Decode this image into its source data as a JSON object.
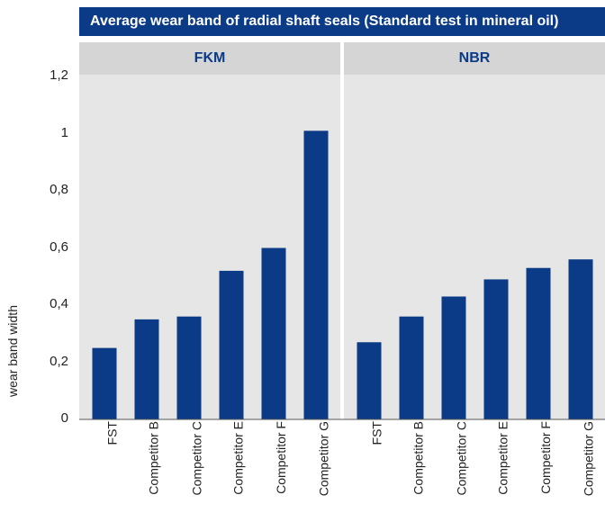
{
  "chart_data": {
    "type": "bar",
    "title": "Average wear band of radial shaft seals (Standard test in mineral oil)",
    "ylabel": "wear band width",
    "ylim": [
      0,
      1.2
    ],
    "yticks": [
      {
        "value": 0,
        "label": "0"
      },
      {
        "value": 0.2,
        "label": "0,2"
      },
      {
        "value": 0.4,
        "label": "0,4"
      },
      {
        "value": 0.6,
        "label": "0,6"
      },
      {
        "value": 0.8,
        "label": "0,8"
      },
      {
        "value": 1.0,
        "label": "1"
      },
      {
        "value": 1.2,
        "label": "1,2"
      }
    ],
    "grid": false,
    "bar_color": "#0b3b86",
    "panel_header_color": "#d5d5d5",
    "panels": [
      {
        "name": "FKM",
        "categories": [
          "FST",
          "Competitor B",
          "Competitor C",
          "Competitor E",
          "Competitor F",
          "Competitor G"
        ],
        "values": [
          0.25,
          0.35,
          0.36,
          0.52,
          0.6,
          1.01
        ]
      },
      {
        "name": "NBR",
        "categories": [
          "FST",
          "Competitor B",
          "Competitor C",
          "Competitor E",
          "Competitor F",
          "Competitor G"
        ],
        "values": [
          0.27,
          0.36,
          0.43,
          0.49,
          0.53,
          0.56
        ]
      }
    ]
  }
}
